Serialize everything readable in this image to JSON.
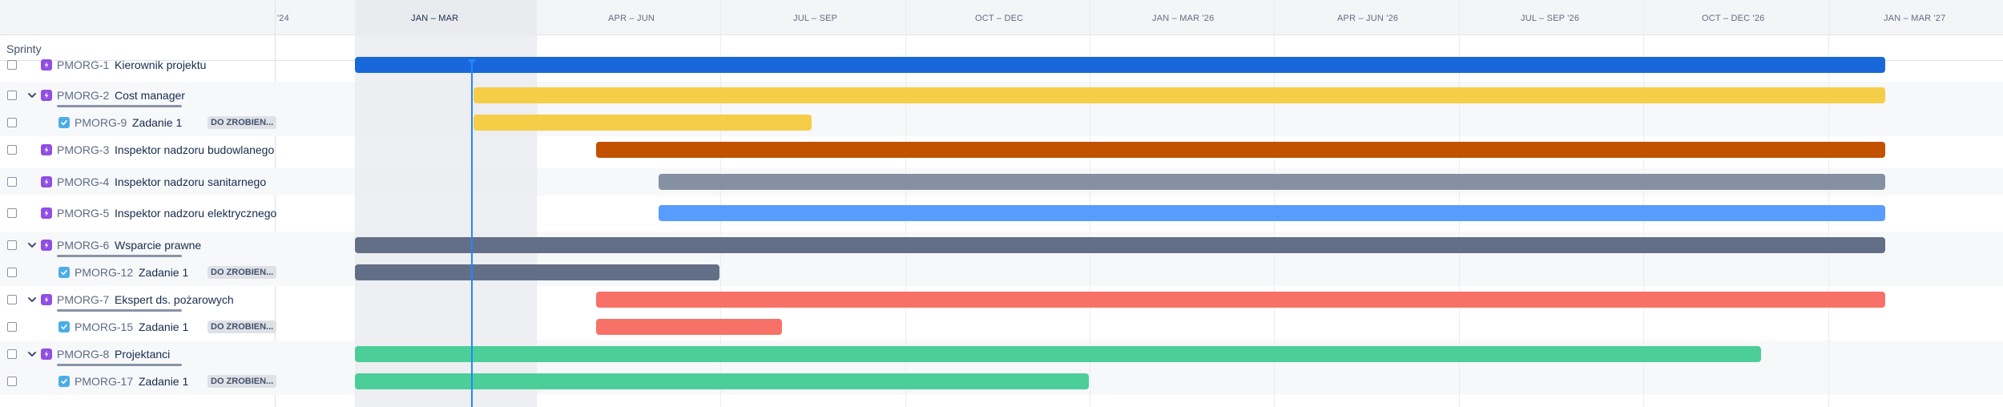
{
  "sprints_label": "Sprinty",
  "timeline_months": [
    {
      "label": "'24",
      "active": false
    },
    {
      "label": "JAN – MAR",
      "active": true
    },
    {
      "label": "APR – JUN",
      "active": false
    },
    {
      "label": "JUL – SEP",
      "active": false
    },
    {
      "label": "OCT – DEC",
      "active": false
    },
    {
      "label": "JAN – MAR '26",
      "active": false
    },
    {
      "label": "APR – JUN '26",
      "active": false
    },
    {
      "label": "JUL – SEP '26",
      "active": false
    },
    {
      "label": "OCT – DEC '26",
      "active": false
    },
    {
      "label": "JAN – MAR '27",
      "active": false
    }
  ],
  "rows": [
    {
      "key": "PMORG-1",
      "summary": "Kierownik projektu",
      "type": "epic",
      "expandable": false,
      "child": false,
      "status": "",
      "color": "#1868db"
    },
    {
      "key": "PMORG-2",
      "summary": "Cost manager",
      "type": "epic",
      "expandable": true,
      "child": false,
      "status": "",
      "color": "#f5cd47"
    },
    {
      "key": "PMORG-9",
      "summary": "Zadanie 1",
      "type": "task",
      "expandable": false,
      "child": true,
      "status": "DO ZROBIEN...",
      "color": "#f5cd47"
    },
    {
      "key": "PMORG-3",
      "summary": "Inspektor nadzoru budowlanego",
      "type": "epic",
      "expandable": false,
      "child": false,
      "status": "",
      "color": "#c25100"
    },
    {
      "key": "PMORG-4",
      "summary": "Inspektor nadzoru sanitarnego",
      "type": "epic",
      "expandable": false,
      "child": false,
      "status": "",
      "color": "#8590a2"
    },
    {
      "key": "PMORG-5",
      "summary": "Inspektor nadzoru elektrycznego",
      "type": "epic",
      "expandable": false,
      "child": false,
      "status": "",
      "color": "#579dff"
    },
    {
      "key": "PMORG-6",
      "summary": "Wsparcie prawne",
      "type": "epic",
      "expandable": true,
      "child": false,
      "status": "",
      "color": "#626f86"
    },
    {
      "key": "PMORG-12",
      "summary": "Zadanie 1",
      "type": "task",
      "expandable": false,
      "child": true,
      "status": "DO ZROBIEN...",
      "color": "#626f86"
    },
    {
      "key": "PMORG-7",
      "summary": "Ekspert ds. pożarowych",
      "type": "epic",
      "expandable": true,
      "child": false,
      "status": "",
      "color": "#f87168"
    },
    {
      "key": "PMORG-15",
      "summary": "Zadanie 1",
      "type": "task",
      "expandable": false,
      "child": true,
      "status": "DO ZROBIEN...",
      "color": "#f87168"
    },
    {
      "key": "PMORG-8",
      "summary": "Projektanci",
      "type": "epic",
      "expandable": true,
      "child": false,
      "status": "",
      "color": "#4bce97"
    },
    {
      "key": "PMORG-17",
      "summary": "Zadanie 1",
      "type": "task",
      "expandable": false,
      "child": true,
      "status": "DO ZROBIEN...",
      "color": "#4bce97"
    }
  ]
}
